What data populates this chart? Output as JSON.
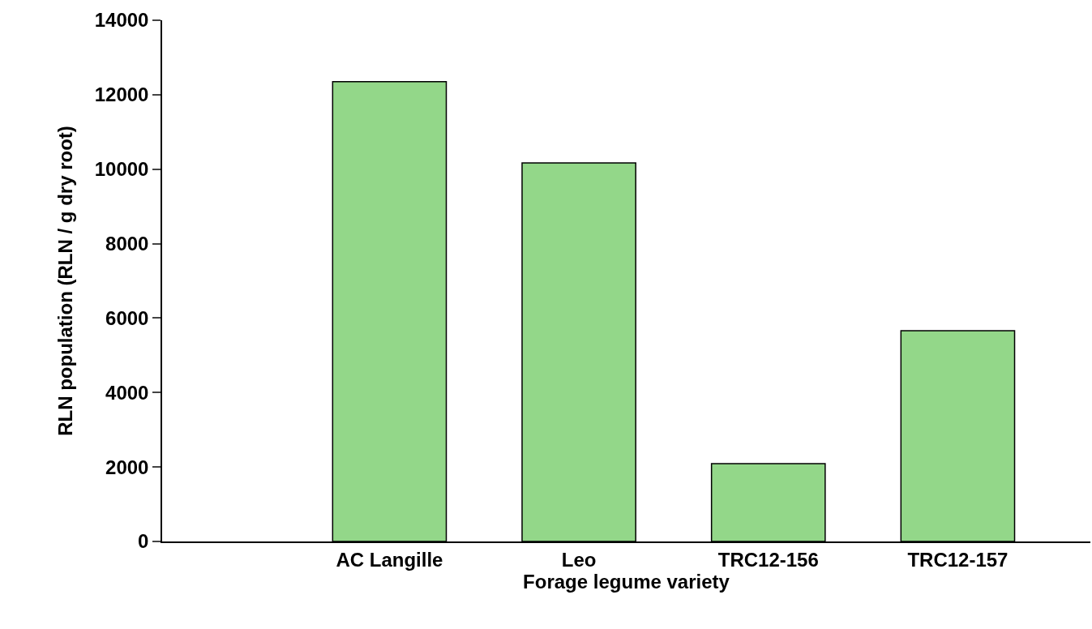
{
  "chart_data": {
    "type": "bar",
    "xlabel": "Forage legume variety",
    "ylabel": "RLN population (RLN / g dry root)",
    "categories": [
      "AC Langille",
      "Leo",
      "TRC12-156",
      "TRC12-157"
    ],
    "values": [
      12350,
      10170,
      2090,
      5660
    ],
    "color": "#93d789",
    "ylim": [
      0,
      14000
    ],
    "yticks": [
      0,
      2000,
      4000,
      6000,
      8000,
      10000,
      12000,
      14000
    ]
  }
}
